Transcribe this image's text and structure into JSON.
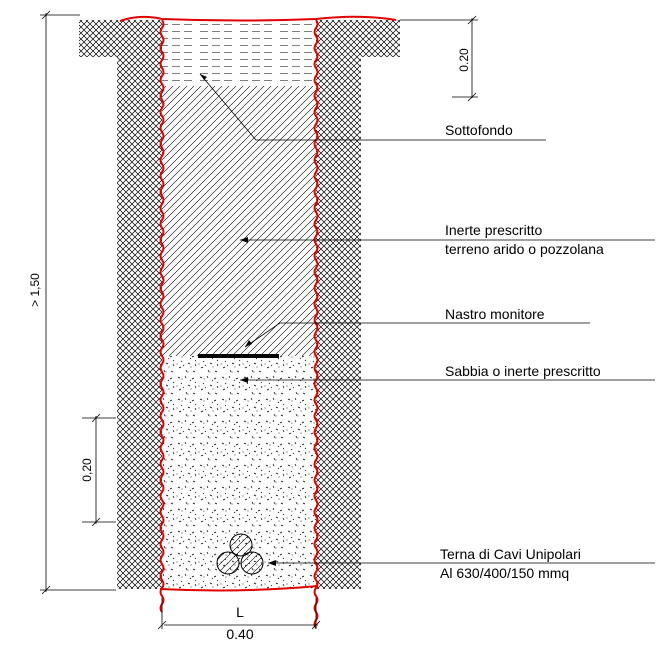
{
  "labels": {
    "sottofondo": "Sottofondo",
    "inerte_line1": "Inerte prescritto",
    "inerte_line2": "terreno arido o pozzolana",
    "nastro": "Nastro monitore",
    "sabbia": "Sabbia o inerte prescritto",
    "terna_line1": "Terna di Cavi Unipolari",
    "terna_line2": "Al 630/400/150 mmq"
  },
  "dimensions": {
    "total_depth": "> 1,50",
    "top_layer": "0.20",
    "bottom_layer": "0,20",
    "width_symbol": "L",
    "width_value": "0.40"
  },
  "colors": {
    "trench_wall": "#e00000",
    "ink": "#000000"
  }
}
